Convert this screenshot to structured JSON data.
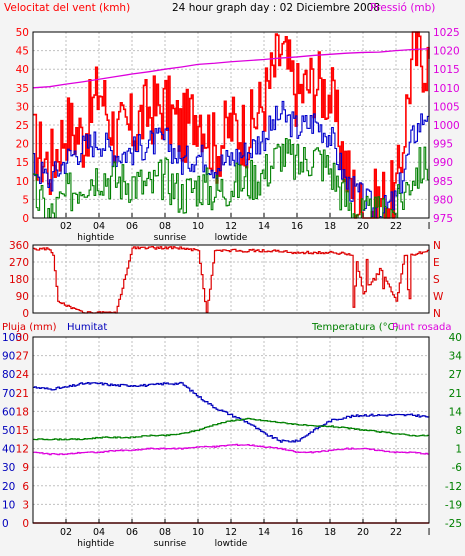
{
  "header": {
    "left_label": "Velocitat del vent (kmh)",
    "center_label": "24 hour graph day : 02 Diciembre 2008",
    "right_label": "Pressió (mb)"
  },
  "panel3": {
    "left_label_1": "Pluja (mm)",
    "left_label_2": "Humitat",
    "right_label_1": "Temperatura (°C)",
    "right_label_2": "Punt rosada"
  },
  "x_axis": {
    "hours": [
      "02",
      "04",
      "06",
      "08",
      "10",
      "12",
      "14",
      "16",
      "18",
      "20",
      "22",
      "I"
    ],
    "events": [
      {
        "text": "hightide",
        "hour": 3.8
      },
      {
        "text": "sunrise",
        "hour": 8.3
      },
      {
        "text": "lowtide",
        "hour": 12.0
      }
    ]
  },
  "colors": {
    "wind_gust": "#ff0000",
    "wind_avg": "#0000cc",
    "wind_min": "#008000",
    "pressure": "#dd00dd",
    "direction": "#dd0000",
    "humidity": "#0000bb",
    "temperature": "#008000",
    "dewpoint": "#dd00dd",
    "rain": "#cc0000",
    "grid": "#c0c0c0",
    "frame": "#000000"
  },
  "chart_data": [
    {
      "type": "line",
      "title": "24 hour graph day : 02 Diciembre 2008",
      "ylabel": "Velocitat del vent (kmh)",
      "y2label": "Pressió (mb)",
      "x_ticks": [
        "02",
        "04",
        "06",
        "08",
        "10",
        "12",
        "14",
        "16",
        "18",
        "20",
        "22",
        "I"
      ],
      "ylim": [
        0,
        50
      ],
      "y_ticks": [
        0,
        5,
        10,
        15,
        20,
        25,
        30,
        35,
        40,
        45,
        50
      ],
      "y2lim": [
        975,
        1025
      ],
      "y2_ticks": [
        975,
        980,
        985,
        990,
        995,
        1000,
        1005,
        1010,
        1015,
        1020,
        1025
      ],
      "x": [
        0,
        1,
        2,
        3,
        4,
        5,
        6,
        7,
        8,
        9,
        10,
        11,
        12,
        13,
        14,
        15,
        16,
        17,
        18,
        19,
        20,
        21,
        22,
        23,
        24
      ],
      "series": [
        {
          "axis": "left",
          "values": [
            20,
            14,
            25,
            22,
            35,
            22,
            24,
            29,
            30,
            23,
            30,
            18,
            25,
            23,
            32,
            45,
            33,
            37,
            33,
            12,
            0,
            5,
            6,
            45,
            42
          ]
        },
        {
          "axis": "left",
          "values": [
            14,
            10,
            16,
            19,
            21,
            17,
            18,
            20,
            21,
            15,
            17,
            14,
            16,
            18,
            22,
            28,
            24,
            26,
            22,
            9,
            5,
            1,
            5,
            22,
            30
          ]
        },
        {
          "axis": "left",
          "values": [
            7,
            0,
            6,
            10,
            12,
            10,
            10,
            8,
            11,
            6,
            9,
            7,
            9,
            10,
            12,
            18,
            14,
            17,
            13,
            4,
            0,
            0,
            2,
            12,
            15
          ]
        },
        {
          "axis": "right",
          "values": [
            1010,
            1010.3,
            1011,
            1011.6,
            1012.3,
            1013,
            1013.7,
            1014.3,
            1015,
            1015.6,
            1016.3,
            1016.6,
            1017,
            1017.3,
            1017.6,
            1018,
            1018.3,
            1018.7,
            1019,
            1019.3,
            1019.5,
            1019.6,
            1020,
            1020.3,
            1020.5
          ]
        }
      ]
    },
    {
      "type": "line",
      "ylim": [
        0,
        360
      ],
      "y_ticks": [
        0,
        90,
        180,
        270,
        360
      ],
      "y2_ticks": [
        "N",
        "E",
        "S",
        "W",
        "N"
      ],
      "x": [
        0,
        1,
        1.2,
        1.5,
        2.5,
        3,
        5,
        6,
        7,
        9,
        10,
        10.5,
        11,
        14,
        16,
        18,
        19.5,
        20,
        21,
        22,
        22.5,
        24
      ],
      "series": [
        {
          "values": [
            340,
            340,
            300,
            60,
            20,
            0,
            0,
            345,
            345,
            345,
            330,
            0,
            330,
            330,
            320,
            320,
            310,
            100,
            240,
            60,
            300,
            330
          ]
        }
      ]
    },
    {
      "type": "line",
      "ylabel": "Pluja (mm)",
      "y2label": "Temperatura (°C)",
      "left_ticks_outer": [
        0,
        10,
        20,
        30,
        40,
        50,
        60,
        70,
        80,
        90,
        100
      ],
      "left_ticks_inner": [
        0,
        3,
        6,
        9,
        12,
        15,
        18,
        21,
        24,
        27,
        30
      ],
      "right_ticks": [
        -25,
        -19,
        -12,
        -6,
        1,
        8,
        14,
        21,
        27,
        34,
        40
      ],
      "x": [
        0,
        1,
        2,
        3,
        4,
        5,
        6,
        7,
        8,
        9,
        10,
        11,
        12,
        13,
        14,
        15,
        16,
        17,
        18,
        19,
        20,
        21,
        22,
        23,
        24
      ],
      "series": [
        {
          "values": [
            73,
            72,
            73,
            75,
            75,
            74,
            74,
            74,
            75,
            75,
            68,
            62,
            58,
            54,
            48,
            44,
            44,
            50,
            55,
            57,
            58,
            58,
            58,
            58,
            57
          ]
        },
        {
          "values": [
            45,
            45,
            45,
            45,
            46,
            46,
            46,
            47,
            47,
            48,
            50,
            53,
            55,
            56,
            55,
            54,
            53,
            52,
            52,
            51,
            50,
            49,
            48,
            47,
            47
          ]
        },
        {
          "values": [
            38,
            37,
            37,
            38,
            38,
            39,
            39,
            40,
            40,
            40,
            41,
            41,
            42,
            42,
            41,
            40,
            38,
            38,
            39,
            40,
            40,
            39,
            38,
            38,
            37
          ]
        },
        {
          "values": [
            0,
            0,
            0,
            0,
            0,
            0,
            0,
            0,
            0,
            0,
            0,
            0,
            0,
            0,
            0,
            0,
            0,
            0,
            0,
            0,
            0,
            0,
            0,
            0,
            0
          ]
        }
      ]
    }
  ]
}
